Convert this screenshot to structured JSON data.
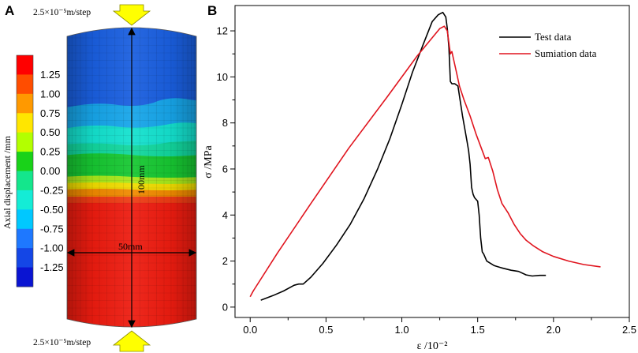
{
  "panel_a": {
    "letter": "A",
    "top_load_label": "2.5×10⁻⁵m/step",
    "bottom_load_label": "2.5×10⁻⁵m/step",
    "height_label": "100mm",
    "width_label": "50mm",
    "colorbar_title": "Axial displacement /mm",
    "colorbar_ticks": [
      "1.25",
      "1.00",
      "0.75",
      "0.50",
      "0.25",
      "0.00",
      "-0.25",
      "-0.50",
      "-0.75",
      "-1.00",
      "-1.25"
    ],
    "colorbar_colors": [
      "#ff0000",
      "#ff4d00",
      "#ff9900",
      "#ffe600",
      "#b3ff00",
      "#19d219",
      "#14e68c",
      "#14ecd6",
      "#00c8ff",
      "#1e78ff",
      "#1446e6",
      "#0a14d2"
    ],
    "arrow_color": "#ffff00"
  },
  "chart_data": {
    "type": "line",
    "letter": "B",
    "xlabel": "ε /10⁻²",
    "ylabel": "σ /MPa",
    "xlim": [
      -0.1,
      2.5
    ],
    "ylim": [
      -0.45,
      13.1
    ],
    "xticks": [
      0.0,
      0.5,
      1.0,
      1.5,
      2.0,
      2.5
    ],
    "xtick_labels": [
      "0.0",
      "0.5",
      "1.0",
      "1.5",
      "2.0",
      "2.5"
    ],
    "yticks": [
      0,
      2,
      4,
      6,
      8,
      10,
      12
    ],
    "ytick_labels": [
      "0",
      "2",
      "4",
      "6",
      "8",
      "10",
      "12"
    ],
    "legend_position": "top-right",
    "series": [
      {
        "name": "Test data",
        "color": "#000000",
        "x": [
          0.07,
          0.15,
          0.22,
          0.29,
          0.32,
          0.35,
          0.4,
          0.48,
          0.57,
          0.66,
          0.75,
          0.84,
          0.92,
          1.0,
          1.07,
          1.14,
          1.2,
          1.24,
          1.27,
          1.29,
          1.3,
          1.31,
          1.32,
          1.33,
          1.35,
          1.37,
          1.4,
          1.43,
          1.44,
          1.45,
          1.46,
          1.47,
          1.48,
          1.5,
          1.51,
          1.52,
          1.53,
          1.54,
          1.56,
          1.61,
          1.66,
          1.72,
          1.77,
          1.82,
          1.86,
          1.91,
          1.95
        ],
        "y": [
          0.3,
          0.5,
          0.7,
          0.95,
          1.0,
          1.0,
          1.3,
          1.9,
          2.7,
          3.6,
          4.7,
          6.0,
          7.3,
          8.8,
          10.2,
          11.4,
          12.4,
          12.7,
          12.8,
          12.6,
          12.1,
          11.3,
          9.8,
          9.7,
          9.7,
          9.6,
          8.3,
          7.2,
          6.8,
          6.2,
          5.2,
          4.9,
          4.75,
          4.6,
          4.0,
          3.0,
          2.4,
          2.3,
          2.0,
          1.8,
          1.7,
          1.6,
          1.55,
          1.4,
          1.35,
          1.38,
          1.38
        ]
      },
      {
        "name": "Sumiation data",
        "color": "#e0141e",
        "x": [
          0.0,
          0.02,
          0.18,
          0.4,
          0.65,
          0.9,
          1.1,
          1.25,
          1.28,
          1.3,
          1.32,
          1.33,
          1.34,
          1.36,
          1.38,
          1.41,
          1.45,
          1.49,
          1.53,
          1.55,
          1.57,
          1.6,
          1.63,
          1.66,
          1.7,
          1.74,
          1.78,
          1.82,
          1.87,
          1.93,
          2.0,
          2.1,
          2.2,
          2.31
        ],
        "y": [
          0.45,
          0.7,
          2.35,
          4.5,
          6.9,
          9.1,
          10.9,
          12.1,
          12.2,
          12.0,
          11.0,
          11.1,
          10.8,
          10.2,
          9.6,
          9.0,
          8.3,
          7.5,
          6.8,
          6.45,
          6.5,
          5.9,
          5.1,
          4.5,
          4.1,
          3.6,
          3.2,
          2.9,
          2.65,
          2.4,
          2.2,
          2.0,
          1.85,
          1.75
        ]
      }
    ]
  }
}
